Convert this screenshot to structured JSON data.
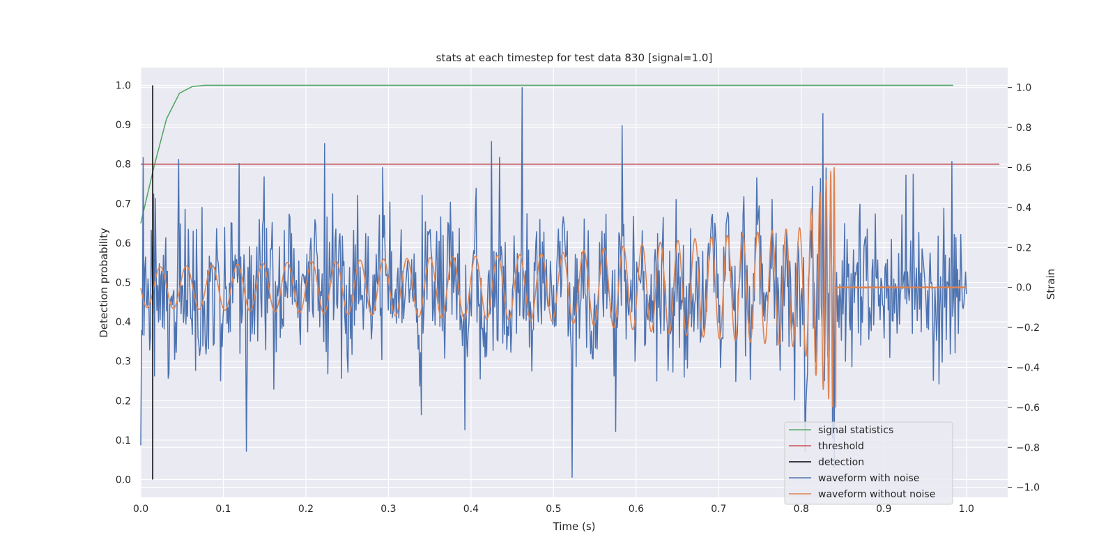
{
  "chart_data": {
    "type": "line",
    "title": "stats at each timestep for test data 830 [signal=1.0]",
    "xlabel": "Time (s)",
    "ylabel": "Detection probability",
    "y2label": "Strain",
    "xlim": [
      0.0,
      1.05
    ],
    "ylim": [
      -0.045,
      1.045
    ],
    "y2lim": [
      -1.05,
      1.1
    ],
    "xticks": [
      0.0,
      0.1,
      0.2,
      0.3,
      0.4,
      0.5,
      0.6,
      0.7,
      0.8,
      0.9,
      1.0
    ],
    "xtick_labels": [
      "0.0",
      "0.1",
      "0.2",
      "0.3",
      "0.4",
      "0.5",
      "0.6",
      "0.7",
      "0.8",
      "0.9",
      "1.0"
    ],
    "yticks": [
      0.0,
      0.1,
      0.2,
      0.3,
      0.4,
      0.5,
      0.6,
      0.7,
      0.8,
      0.9,
      1.0
    ],
    "ytick_labels": [
      "0.0",
      "0.1",
      "0.2",
      "0.3",
      "0.4",
      "0.5",
      "0.6",
      "0.7",
      "0.8",
      "0.9",
      "1.0"
    ],
    "y2ticks": [
      -1.0,
      -0.8,
      -0.6,
      -0.4,
      -0.2,
      0.0,
      0.2,
      0.4,
      0.6,
      0.8,
      1.0
    ],
    "y2tick_labels": [
      "−1.0",
      "−0.8",
      "−0.6",
      "−0.4",
      "−0.2",
      "0.0",
      "0.2",
      "0.4",
      "0.6",
      "0.8",
      "1.0"
    ],
    "grid": true,
    "legend_position": "lower-right",
    "series": [
      {
        "name": "signal statistics",
        "axis": "left",
        "color": "#55a868",
        "x": [
          0.0,
          0.0156,
          0.0312,
          0.0469,
          0.0625,
          0.0781,
          0.1,
          0.2,
          0.3,
          0.4,
          0.5,
          0.6,
          0.7,
          0.8,
          0.9,
          0.984
        ],
        "y": [
          0.65,
          0.79,
          0.915,
          0.98,
          0.997,
          1.0,
          1.0,
          1.0,
          1.0,
          1.0,
          1.0,
          1.0,
          1.0,
          1.0,
          1.0,
          1.0
        ]
      },
      {
        "name": "threshold",
        "axis": "left",
        "color": "#c44e52",
        "x": [
          0.0,
          1.04
        ],
        "y": [
          0.8,
          0.8
        ]
      },
      {
        "name": "detection",
        "axis": "left",
        "color": "#000000",
        "x": [
          0.0145,
          0.0145
        ],
        "y": [
          0.0,
          1.0
        ]
      },
      {
        "name": "waveform with noise",
        "axis": "right",
        "color": "#4c72b0",
        "x_range": [
          0.0,
          1.0
        ],
        "max": 1.0,
        "min": -0.95,
        "std": 0.27,
        "peaks": [
          {
            "x": 0.003,
            "y": 0.65
          },
          {
            "x": 0.0,
            "y": -0.79
          },
          {
            "x": 0.046,
            "y": 0.64
          },
          {
            "x": 0.119,
            "y": 0.62
          },
          {
            "x": 0.128,
            "y": -0.82
          },
          {
            "x": 0.223,
            "y": 0.72
          },
          {
            "x": 0.293,
            "y": 0.6
          },
          {
            "x": 0.425,
            "y": 0.73
          },
          {
            "x": 0.462,
            "y": 1.0
          },
          {
            "x": 0.522,
            "y": -0.95
          },
          {
            "x": 0.583,
            "y": 0.81
          },
          {
            "x": 0.575,
            "y": -0.72
          },
          {
            "x": 0.826,
            "y": 0.87
          },
          {
            "x": 0.84,
            "y": -0.9
          },
          {
            "x": 0.982,
            "y": 0.63
          }
        ]
      },
      {
        "name": "waveform without noise",
        "axis": "right",
        "color": "#dd8452",
        "description_points": [
          {
            "x": 0.0,
            "amplitude": 0.1,
            "cycle_period": 0.032
          },
          {
            "x": 0.5,
            "amplitude": 0.17,
            "cycle_period": 0.026
          },
          {
            "x": 0.8,
            "amplitude": 0.3,
            "cycle_period": 0.016
          },
          {
            "x": 0.838,
            "amplitude": 0.6,
            "cycle_period": 0.004
          }
        ],
        "merger_time": 0.842,
        "post_merger_value": 0.0,
        "end_x": 1.0
      }
    ]
  }
}
